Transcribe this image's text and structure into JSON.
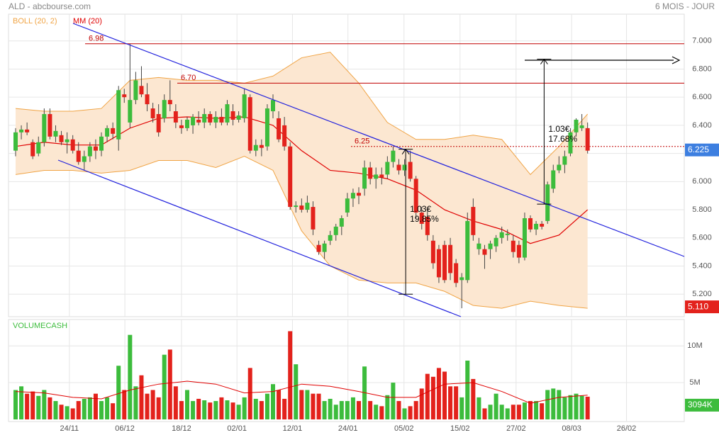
{
  "chart_data": {
    "type": "candlestick",
    "title": "ALD - abcbourse.com",
    "period": "6 MOIS - JOUR",
    "up_color": "#3cbc3c",
    "down_color": "#e3221c",
    "grid": true,
    "xlim": [
      -1.24,
      116.9
    ],
    "xticks": [
      {
        "value": 9.4,
        "label": "24/11"
      },
      {
        "value": 19.1,
        "label": "06/12"
      },
      {
        "value": 29.0,
        "label": "18/12"
      },
      {
        "value": 38.7,
        "label": "02/01"
      },
      {
        "value": 48.4,
        "label": "12/01"
      },
      {
        "value": 58.1,
        "label": "24/01"
      },
      {
        "value": 67.9,
        "label": "05/02"
      },
      {
        "value": 77.7,
        "label": "15/02"
      },
      {
        "value": 87.5,
        "label": "27/02"
      },
      {
        "value": 97.2,
        "label": "08/03"
      },
      {
        "value": 106.8,
        "label": "26/02"
      }
    ],
    "ylim": [
      5.04,
      7.19
    ],
    "yticks": [
      {
        "value": 5.2,
        "label": "5.200"
      },
      {
        "value": 5.4,
        "label": "5.400"
      },
      {
        "value": 5.6,
        "label": "5.600"
      },
      {
        "value": 5.8,
        "label": "5.800"
      },
      {
        "value": 6,
        "label": "6.000"
      },
      {
        "value": 6.2,
        "label": "6.200"
      },
      {
        "value": 6.4,
        "label": "6.400"
      },
      {
        "value": 6.6,
        "label": "6.600"
      },
      {
        "value": 6.8,
        "label": "6.800"
      },
      {
        "value": 7,
        "label": "7.000"
      }
    ],
    "candles": [
      [
        6.22,
        6.38,
        6.18,
        6.35
      ],
      [
        6.35,
        6.4,
        6.3,
        6.37
      ],
      [
        6.37,
        6.42,
        6.33,
        6.35
      ],
      [
        6.28,
        6.3,
        6.16,
        6.18
      ],
      [
        6.2,
        6.32,
        6.18,
        6.28
      ],
      [
        6.28,
        6.52,
        6.25,
        6.48
      ],
      [
        6.48,
        6.52,
        6.3,
        6.32
      ],
      [
        6.32,
        6.4,
        6.28,
        6.36
      ],
      [
        6.33,
        6.36,
        6.26,
        6.28
      ],
      [
        6.28,
        6.35,
        6.2,
        6.3
      ],
      [
        6.3,
        6.33,
        6.2,
        6.22
      ],
      [
        6.22,
        6.28,
        6.12,
        6.14
      ],
      [
        6.14,
        6.22,
        6.08,
        6.18
      ],
      [
        6.18,
        6.28,
        6.14,
        6.25
      ],
      [
        6.25,
        6.3,
        6.16,
        6.22
      ],
      [
        6.22,
        6.35,
        6.18,
        6.32
      ],
      [
        6.32,
        6.4,
        6.28,
        6.38
      ],
      [
        6.38,
        6.42,
        6.3,
        6.34
      ],
      [
        6.3,
        6.68,
        6.22,
        6.65
      ],
      [
        6.62,
        6.66,
        6.56,
        6.6
      ],
      [
        6.42,
        6.98,
        6.38,
        6.58
      ],
      [
        6.58,
        6.78,
        6.55,
        6.72
      ],
      [
        6.68,
        6.82,
        6.6,
        6.62
      ],
      [
        6.62,
        6.7,
        6.5,
        6.55
      ],
      [
        6.52,
        6.56,
        6.42,
        6.45
      ],
      [
        6.48,
        6.55,
        6.32,
        6.35
      ],
      [
        6.45,
        6.62,
        6.42,
        6.58
      ],
      [
        6.58,
        6.72,
        6.5,
        6.55
      ],
      [
        6.5,
        6.55,
        6.38,
        6.42
      ],
      [
        6.4,
        6.44,
        6.34,
        6.38
      ],
      [
        6.38,
        6.46,
        6.36,
        6.44
      ],
      [
        6.4,
        6.48,
        6.34,
        6.46
      ],
      [
        6.44,
        6.5,
        6.4,
        6.42
      ],
      [
        6.42,
        6.52,
        6.38,
        6.48
      ],
      [
        6.48,
        6.5,
        6.4,
        6.42
      ],
      [
        6.42,
        6.5,
        6.38,
        6.46
      ],
      [
        6.46,
        6.52,
        6.4,
        6.42
      ],
      [
        6.42,
        6.58,
        6.4,
        6.55
      ],
      [
        6.5,
        6.55,
        6.4,
        6.44
      ],
      [
        6.44,
        6.5,
        6.42,
        6.47
      ],
      [
        6.45,
        6.66,
        6.42,
        6.62
      ],
      [
        6.6,
        6.62,
        6.2,
        6.22
      ],
      [
        6.22,
        6.3,
        6.18,
        6.26
      ],
      [
        6.26,
        6.3,
        6.18,
        6.24
      ],
      [
        6.25,
        6.55,
        6.22,
        6.52
      ],
      [
        6.5,
        6.62,
        6.45,
        6.58
      ],
      [
        6.45,
        6.5,
        6.28,
        6.3
      ],
      [
        6.4,
        6.46,
        6.22,
        6.25
      ],
      [
        6.25,
        6.28,
        5.8,
        5.82
      ],
      [
        5.82,
        5.86,
        5.78,
        5.83
      ],
      [
        5.83,
        5.88,
        5.78,
        5.8
      ],
      [
        5.8,
        5.9,
        5.78,
        5.85
      ],
      [
        5.82,
        5.86,
        5.62,
        5.66
      ],
      [
        5.55,
        5.58,
        5.48,
        5.5
      ],
      [
        5.5,
        5.58,
        5.45,
        5.56
      ],
      [
        5.58,
        5.65,
        5.55,
        5.62
      ],
      [
        5.62,
        5.7,
        5.58,
        5.68
      ],
      [
        5.68,
        5.76,
        5.62,
        5.74
      ],
      [
        5.78,
        5.92,
        5.75,
        5.88
      ],
      [
        5.88,
        5.95,
        5.82,
        5.92
      ],
      [
        5.92,
        5.96,
        5.84,
        5.9
      ],
      [
        5.95,
        6.15,
        5.9,
        6.1
      ],
      [
        6.1,
        6.14,
        5.98,
        6.02
      ],
      [
        6.02,
        6.1,
        5.95,
        6.05
      ],
      [
        6.05,
        6.1,
        5.98,
        6.03
      ],
      [
        6.05,
        6.18,
        6.02,
        6.14
      ],
      [
        6.14,
        6.25,
        6.1,
        6.22
      ],
      [
        6.12,
        6.16,
        6.05,
        6.08
      ],
      [
        6.08,
        6.16,
        6.04,
        6.12
      ],
      [
        6.14,
        6.22,
        6.0,
        6.02
      ],
      [
        6.02,
        6.04,
        5.74,
        5.78
      ],
      [
        5.78,
        5.82,
        5.66,
        5.7
      ],
      [
        5.75,
        5.8,
        5.58,
        5.62
      ],
      [
        5.58,
        5.62,
        5.38,
        5.42
      ],
      [
        5.52,
        5.55,
        5.28,
        5.32
      ],
      [
        5.55,
        5.58,
        5.28,
        5.3
      ],
      [
        5.55,
        5.6,
        5.3,
        5.35
      ],
      [
        5.42,
        5.45,
        5.25,
        5.28
      ],
      [
        5.3,
        5.35,
        5.1,
        5.32
      ],
      [
        5.3,
        5.78,
        5.28,
        5.72
      ],
      [
        5.82,
        5.88,
        5.58,
        5.62
      ],
      [
        5.52,
        5.6,
        5.48,
        5.56
      ],
      [
        5.52,
        5.55,
        5.38,
        5.48
      ],
      [
        5.52,
        5.58,
        5.45,
        5.56
      ],
      [
        5.54,
        5.62,
        5.5,
        5.6
      ],
      [
        5.6,
        5.68,
        5.56,
        5.64
      ],
      [
        5.62,
        5.66,
        5.58,
        5.63
      ],
      [
        5.58,
        5.62,
        5.46,
        5.5
      ],
      [
        5.55,
        5.58,
        5.42,
        5.46
      ],
      [
        5.46,
        5.78,
        5.44,
        5.74
      ],
      [
        5.74,
        5.76,
        5.64,
        5.66
      ],
      [
        5.66,
        5.72,
        5.62,
        5.7
      ],
      [
        5.7,
        5.72,
        5.66,
        5.68
      ],
      [
        5.72,
        6.0,
        5.7,
        5.98
      ],
      [
        5.95,
        6.12,
        5.92,
        6.08
      ],
      [
        6.08,
        6.18,
        6.06,
        6.12
      ],
      [
        6.12,
        6.22,
        6.06,
        6.18
      ],
      [
        6.2,
        6.38,
        6.18,
        6.35
      ],
      [
        6.35,
        6.45,
        6.32,
        6.44
      ],
      [
        6.38,
        6.48,
        6.36,
        6.4
      ],
      [
        6.38,
        6.42,
        6.2,
        6.22
      ]
    ],
    "bollinger": {
      "name": "BOLL (20, 2)",
      "color": "#f0a445",
      "fill": "#fce7d1",
      "x": [
        0,
        5,
        10,
        15,
        20,
        25,
        30,
        35,
        40,
        45,
        50,
        55,
        60,
        65,
        70,
        75,
        80,
        85,
        90,
        95,
        100
      ],
      "upper": [
        6.52,
        6.5,
        6.5,
        6.52,
        6.72,
        6.74,
        6.72,
        6.72,
        6.7,
        6.75,
        6.88,
        6.92,
        6.7,
        6.42,
        6.3,
        6.3,
        6.33,
        6.3,
        6.05,
        6.25,
        6.48
      ],
      "lower": [
        6.05,
        6.08,
        6.08,
        6.06,
        6.08,
        6.15,
        6.15,
        6.1,
        6.18,
        6.08,
        5.65,
        5.4,
        5.3,
        5.28,
        5.28,
        5.22,
        5.12,
        5.1,
        5.15,
        5.12,
        5.1
      ]
    },
    "moving_average": {
      "name": "MM (20)",
      "color": "#e00000",
      "x": [
        0,
        5,
        10,
        15,
        20,
        25,
        30,
        35,
        40,
        45,
        50,
        55,
        60,
        65,
        70,
        75,
        80,
        85,
        90,
        95,
        100
      ],
      "values": [
        6.25,
        6.28,
        6.26,
        6.26,
        6.38,
        6.45,
        6.46,
        6.45,
        6.46,
        6.4,
        6.22,
        6.08,
        6.06,
        6.02,
        5.94,
        5.8,
        5.72,
        5.66,
        5.56,
        5.62,
        5.8
      ]
    },
    "levels": [
      {
        "value": 6.98,
        "label": "6.98"
      },
      {
        "value": 6.7,
        "label": "6.70"
      },
      {
        "value": 6.25,
        "label": "6.25"
      }
    ],
    "markers": [
      {
        "value": 6.225,
        "label": "6.225",
        "color": "#3d7fe0"
      },
      {
        "value": 5.11,
        "label": "5.110",
        "color": "#e3221c"
      }
    ],
    "measures": [
      {
        "x": 68.2,
        "from": 5.2,
        "to": 6.23,
        "text": [
          "1.03€",
          "19.85%"
        ]
      },
      {
        "x": 92.4,
        "from": 5.84,
        "to": 6.87,
        "text": [
          "1.03€",
          "17.68%"
        ]
      }
    ],
    "volume": {
      "name": "VOLUMECASH",
      "ylim": [
        0,
        13.3
      ],
      "yticks": [
        {
          "value": 5,
          "label": "5M"
        },
        {
          "value": 10,
          "label": "10M"
        }
      ],
      "values": [
        4.0,
        4.5,
        3.5,
        3.8,
        3.2,
        4.0,
        3.0,
        2.5,
        2.0,
        1.8,
        1.5,
        2.5,
        2.8,
        3.0,
        3.5,
        2.5,
        3.0,
        2.2,
        7.3,
        4.0,
        11.5,
        4.5,
        6.0,
        3.5,
        4.0,
        3.0,
        8.8,
        9.5,
        4.5,
        2.5,
        4.0,
        2.5,
        2.8,
        2.6,
        2.3,
        2.5,
        3.0,
        2.6,
        2.3,
        2.0,
        3.0,
        7.0,
        2.8,
        2.5,
        3.5,
        4.8,
        4.0,
        2.8,
        12.0,
        7.5,
        4.0,
        4.0,
        3.5,
        3.5,
        2.5,
        2.8,
        2.0,
        2.5,
        2.5,
        3.0,
        2.5,
        7.2,
        2.5,
        2.0,
        1.8,
        3.3,
        5.0,
        2.5,
        1.5,
        1.8,
        2.5,
        4.2,
        6.2,
        5.8,
        7.0,
        6.5,
        4.5,
        4.5,
        3.0,
        8.0,
        5.5,
        3.0,
        1.5,
        2.0,
        3.5,
        2.0,
        1.5,
        2.0,
        2.0,
        2.3,
        2.5,
        2.5,
        2.2,
        4.0,
        4.2,
        4.0,
        3.0,
        3.3,
        3.5,
        3.2,
        3.094
      ],
      "ma": {
        "color": "#e00000",
        "x": [
          0,
          5,
          10,
          15,
          20,
          25,
          30,
          35,
          40,
          45,
          50,
          55,
          60,
          65,
          70,
          75,
          80,
          85,
          90,
          95,
          100
        ],
        "values": [
          3.8,
          3.6,
          3.0,
          2.8,
          4.0,
          4.8,
          5.2,
          4.8,
          3.6,
          3.8,
          4.8,
          4.5,
          3.8,
          3.0,
          3.0,
          4.8,
          5.0,
          3.8,
          2.2,
          3.0,
          3.3
        ]
      },
      "badge": {
        "value": 3.094,
        "label": "3094K",
        "color": "#3cbc3c"
      }
    }
  }
}
